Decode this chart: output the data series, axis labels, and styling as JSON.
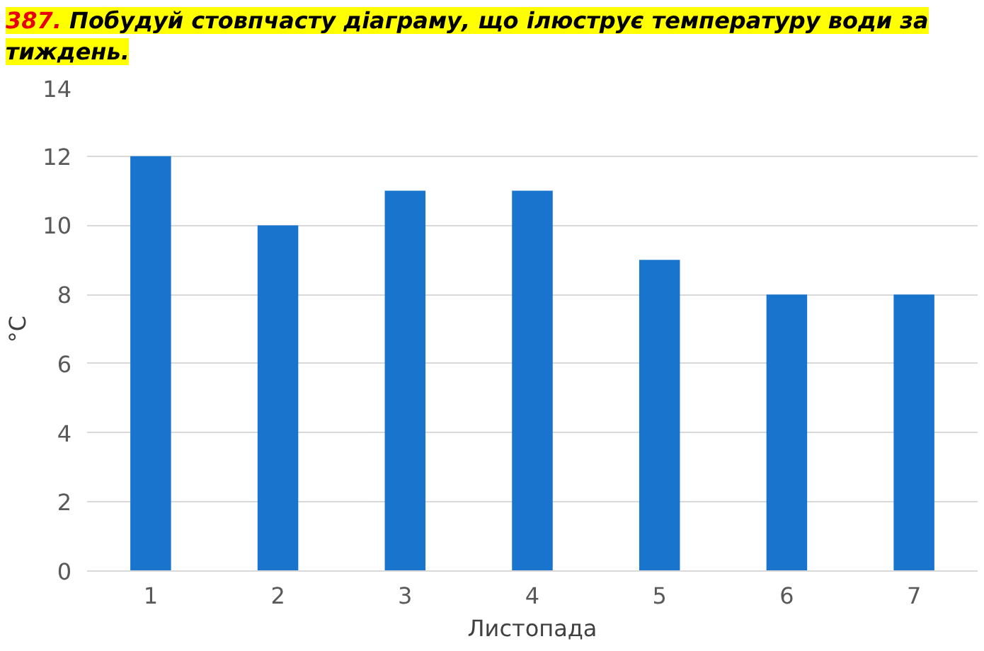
{
  "chart_data": {
    "type": "bar",
    "title": "387. Побудуй стовпчасту діаграму, що ілюструє температуру води за тиждень.",
    "xlabel": "Листопада",
    "ylabel": "°C",
    "categories": [
      "1",
      "2",
      "3",
      "4",
      "5",
      "6",
      "7"
    ],
    "values": [
      12,
      10,
      11,
      11,
      9,
      8,
      8
    ],
    "color": "#1874cd",
    "ylim": [
      0,
      14
    ],
    "yticks": [
      0,
      2,
      4,
      6,
      8,
      10,
      12,
      14
    ],
    "grid": "y"
  }
}
